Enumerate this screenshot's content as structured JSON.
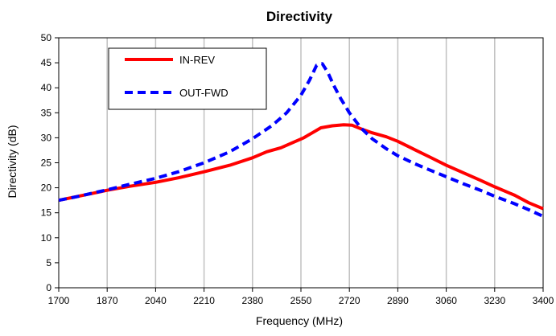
{
  "chart_data": {
    "type": "line",
    "title": "Directivity",
    "xlabel": "Frequency (MHz)",
    "ylabel": "Directivity (dB)",
    "xlim": [
      1700,
      3400
    ],
    "ylim": [
      0,
      50
    ],
    "x_ticks": [
      1700,
      1870,
      2040,
      2210,
      2380,
      2550,
      2720,
      2890,
      3060,
      3230,
      3400
    ],
    "y_ticks": [
      0,
      5,
      10,
      15,
      20,
      25,
      30,
      35,
      40,
      45,
      50
    ],
    "grid": "vertical",
    "legend_position": "top-left",
    "series": [
      {
        "name": "IN-REV",
        "color": "#ff0000",
        "style": "solid",
        "x": [
          1700,
          1760,
          1820,
          1870,
          1950,
          2040,
          2120,
          2210,
          2300,
          2380,
          2430,
          2480,
          2520,
          2560,
          2590,
          2620,
          2660,
          2700,
          2730,
          2760,
          2800,
          2850,
          2890,
          2950,
          3000,
          3060,
          3120,
          3180,
          3230,
          3300,
          3350,
          3400
        ],
        "y": [
          17.5,
          18.2,
          18.9,
          19.5,
          20.3,
          21.1,
          22.0,
          23.2,
          24.5,
          26.0,
          27.2,
          28.0,
          29.0,
          30.0,
          31.0,
          32.0,
          32.4,
          32.6,
          32.5,
          31.8,
          31.0,
          30.2,
          29.3,
          27.6,
          26.2,
          24.5,
          23.0,
          21.5,
          20.2,
          18.5,
          17.0,
          15.8
        ]
      },
      {
        "name": "OUT-FWD",
        "color": "#0000ff",
        "style": "dashed",
        "x": [
          1700,
          1770,
          1870,
          1950,
          2040,
          2120,
          2210,
          2300,
          2380,
          2450,
          2500,
          2550,
          2580,
          2605,
          2625,
          2645,
          2665,
          2690,
          2720,
          2760,
          2800,
          2850,
          2890,
          2950,
          3000,
          3060,
          3120,
          3180,
          3230,
          3300,
          3350,
          3400
        ],
        "y": [
          17.5,
          18.3,
          19.6,
          20.7,
          21.9,
          23.2,
          25.0,
          27.2,
          29.8,
          32.5,
          35.0,
          38.5,
          41.5,
          44.5,
          44.8,
          43.0,
          40.5,
          37.8,
          35.0,
          32.0,
          29.8,
          27.8,
          26.4,
          24.8,
          23.6,
          22.2,
          20.8,
          19.5,
          18.3,
          16.8,
          15.6,
          14.3
        ]
      }
    ]
  }
}
